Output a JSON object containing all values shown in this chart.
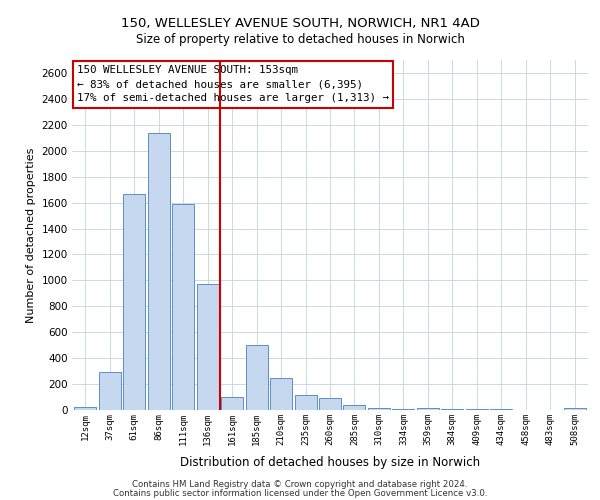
{
  "title1": "150, WELLESLEY AVENUE SOUTH, NORWICH, NR1 4AD",
  "title2": "Size of property relative to detached houses in Norwich",
  "xlabel": "Distribution of detached houses by size in Norwich",
  "ylabel": "Number of detached properties",
  "categories": [
    "12sqm",
    "37sqm",
    "61sqm",
    "86sqm",
    "111sqm",
    "136sqm",
    "161sqm",
    "185sqm",
    "210sqm",
    "235sqm",
    "260sqm",
    "285sqm",
    "310sqm",
    "334sqm",
    "359sqm",
    "384sqm",
    "409sqm",
    "434sqm",
    "458sqm",
    "483sqm",
    "508sqm"
  ],
  "values": [
    20,
    290,
    1670,
    2140,
    1590,
    970,
    100,
    500,
    245,
    115,
    95,
    35,
    15,
    5,
    15,
    5,
    10,
    5,
    0,
    0,
    15
  ],
  "bar_color": "#c5d8ef",
  "bar_edge_color": "#5a8fc3",
  "vline_x": 5.5,
  "vline_color": "#cc0000",
  "annotation_box_color": "#ffffff",
  "annotation_box_edge": "#cc0000",
  "annotation_title": "150 WELLESLEY AVENUE SOUTH: 153sqm",
  "annotation_line1": "← 83% of detached houses are smaller (6,395)",
  "annotation_line2": "17% of semi-detached houses are larger (1,313) →",
  "ylim": [
    0,
    2700
  ],
  "yticks": [
    0,
    200,
    400,
    600,
    800,
    1000,
    1200,
    1400,
    1600,
    1800,
    2000,
    2200,
    2400,
    2600
  ],
  "footer1": "Contains HM Land Registry data © Crown copyright and database right 2024.",
  "footer2": "Contains public sector information licensed under the Open Government Licence v3.0.",
  "bg_color": "#ffffff",
  "grid_color": "#c8d8e8"
}
